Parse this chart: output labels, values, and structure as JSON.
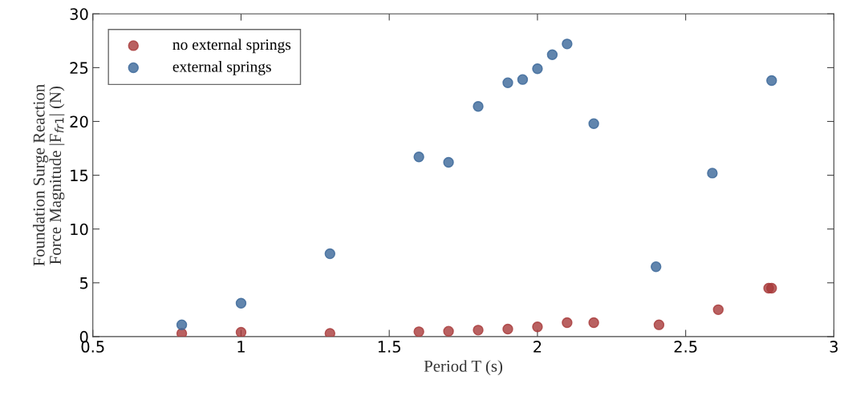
{
  "chart_data": {
    "type": "scatter",
    "xlabel": "Period T (s)",
    "ylabel": "Foundation Surge Reaction\nForce Magnitude |F$_{fr1}$| (N)",
    "xlim": [
      0.5,
      3
    ],
    "xticks": [
      0.5,
      1,
      1.5,
      2,
      2.5,
      3
    ],
    "ylim": [
      0,
      30
    ],
    "yticks": [
      0,
      5,
      10,
      15,
      20,
      25,
      30
    ],
    "grid": false,
    "legend": "top left",
    "marker": "circle",
    "series": [
      {
        "name": "no external springs",
        "color": "#a83a3a",
        "x": [
          0.8,
          1.0,
          1.3,
          1.6,
          1.7,
          1.8,
          1.9,
          2.0,
          2.1,
          2.19,
          2.41,
          2.61,
          2.78,
          2.79
        ],
        "values": [
          0.3,
          0.4,
          0.3,
          0.45,
          0.5,
          0.6,
          0.7,
          0.9,
          1.3,
          1.3,
          1.1,
          2.5,
          4.5,
          4.5
        ]
      },
      {
        "name": "external springs",
        "color": "#3a6698",
        "x": [
          0.8,
          1.0,
          1.3,
          1.6,
          1.7,
          1.8,
          1.9,
          1.95,
          2.0,
          2.05,
          2.1,
          2.19,
          2.4,
          2.59,
          2.79
        ],
        "values": [
          1.1,
          3.1,
          7.7,
          16.7,
          16.2,
          21.4,
          23.6,
          23.9,
          24.9,
          26.2,
          27.2,
          19.8,
          6.5,
          15.2,
          23.8
        ]
      }
    ]
  }
}
